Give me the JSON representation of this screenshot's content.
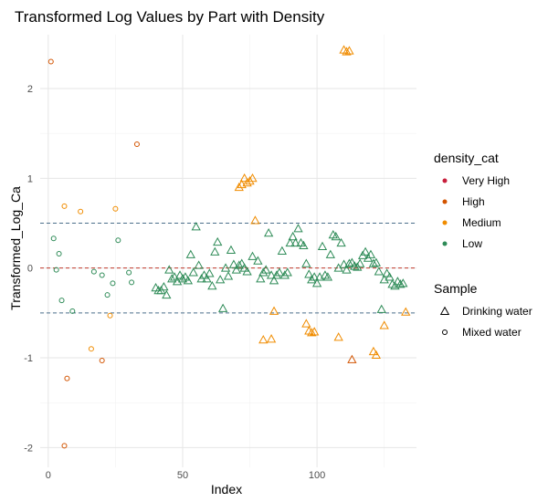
{
  "chart_data": {
    "type": "scatter",
    "title": "Transformed Log  Values by Part with Density",
    "xlabel": "Index",
    "ylabel": "Transformed_Log_Ca",
    "xlim": [
      -3,
      137
    ],
    "ylim": [
      -2.22,
      2.6
    ],
    "x_ticks": [
      0,
      50,
      100
    ],
    "y_ticks": [
      -2,
      -1,
      0,
      1,
      2
    ],
    "grid": true,
    "reference_lines": [
      {
        "y": 0,
        "color": "#C0392B",
        "style": "dashed"
      },
      {
        "y": 0.5,
        "color": "#4A6E8A",
        "style": "dashed"
      },
      {
        "y": -0.5,
        "color": "#4A6E8A",
        "style": "dashed"
      }
    ],
    "legend_position": "right",
    "legend_color": {
      "title": "density_cat",
      "items": [
        {
          "label": "Very High",
          "color": "#C81E3B"
        },
        {
          "label": "High",
          "color": "#D35400"
        },
        {
          "label": "Medium",
          "color": "#F08C00"
        },
        {
          "label": "Low",
          "color": "#2E8B57"
        }
      ]
    },
    "legend_shape": {
      "title": "Sample",
      "items": [
        {
          "label": "Drinking water",
          "shape": "triangle"
        },
        {
          "label": "Mixed water",
          "shape": "circle"
        }
      ]
    },
    "series": [
      {
        "category": "High",
        "shape": "circle",
        "points": [
          [
            1,
            2.3
          ],
          [
            7,
            -1.23
          ],
          [
            20,
            -1.03
          ],
          [
            33,
            1.38
          ],
          [
            6,
            -1.98
          ]
        ]
      },
      {
        "category": "Medium",
        "shape": "circle",
        "points": [
          [
            6,
            0.69
          ],
          [
            12,
            0.63
          ],
          [
            16,
            -0.9
          ],
          [
            23,
            -0.53
          ],
          [
            25,
            0.66
          ]
        ]
      },
      {
        "category": "Low",
        "shape": "circle",
        "points": [
          [
            2,
            0.33
          ],
          [
            3,
            -0.02
          ],
          [
            4,
            0.16
          ],
          [
            5,
            -0.36
          ],
          [
            9,
            -0.48
          ],
          [
            17,
            -0.04
          ],
          [
            20,
            -0.08
          ],
          [
            22,
            -0.3
          ],
          [
            24,
            -0.17
          ],
          [
            26,
            0.31
          ],
          [
            30,
            -0.05
          ],
          [
            31,
            -0.16
          ]
        ]
      },
      {
        "category": "Medium",
        "shape": "triangle",
        "points": [
          [
            71,
            0.9
          ],
          [
            72,
            0.93
          ],
          [
            73,
            1.0
          ],
          [
            74,
            0.95
          ],
          [
            75,
            0.97
          ],
          [
            76,
            1.0
          ],
          [
            77,
            0.53
          ],
          [
            80,
            -0.8
          ],
          [
            83,
            -0.79
          ],
          [
            84,
            -0.48
          ],
          [
            96,
            -0.62
          ],
          [
            97,
            -0.7
          ],
          [
            98,
            -0.72
          ],
          [
            99,
            -0.71
          ],
          [
            108,
            -0.77
          ],
          [
            110,
            2.43
          ],
          [
            111,
            2.41
          ],
          [
            112,
            2.42
          ],
          [
            121,
            -0.93
          ],
          [
            122,
            -0.97
          ],
          [
            125,
            -0.64
          ],
          [
            133,
            -0.49
          ]
        ]
      },
      {
        "category": "High",
        "shape": "triangle",
        "points": [
          [
            113,
            -1.02
          ]
        ]
      },
      {
        "category": "Low",
        "shape": "triangle",
        "points": [
          [
            40,
            -0.22
          ],
          [
            41,
            -0.25
          ],
          [
            42,
            -0.25
          ],
          [
            43,
            -0.21
          ],
          [
            44,
            -0.3
          ],
          [
            45,
            -0.02
          ],
          [
            46,
            -0.12
          ],
          [
            47,
            -0.1
          ],
          [
            48,
            -0.15
          ],
          [
            49,
            -0.08
          ],
          [
            50,
            -0.12
          ],
          [
            51,
            -0.1
          ],
          [
            52,
            -0.14
          ],
          [
            53,
            0.15
          ],
          [
            54,
            -0.05
          ],
          [
            55,
            0.46
          ],
          [
            56,
            0.03
          ],
          [
            57,
            -0.12
          ],
          [
            58,
            -0.08
          ],
          [
            59,
            -0.12
          ],
          [
            60,
            -0.06
          ],
          [
            61,
            -0.2
          ],
          [
            62,
            0.18
          ],
          [
            63,
            0.29
          ],
          [
            64,
            -0.13
          ],
          [
            65,
            -0.45
          ],
          [
            66,
            0.0
          ],
          [
            67,
            -0.09
          ],
          [
            68,
            0.2
          ],
          [
            69,
            0.04
          ],
          [
            70,
            -0.02
          ],
          [
            71,
            0.03
          ],
          [
            72,
            0.05
          ],
          [
            73,
            0.0
          ],
          [
            74,
            -0.04
          ],
          [
            76,
            0.13
          ],
          [
            78,
            0.08
          ],
          [
            79,
            -0.12
          ],
          [
            80,
            -0.05
          ],
          [
            81,
            -0.02
          ],
          [
            82,
            0.39
          ],
          [
            83,
            -0.08
          ],
          [
            84,
            -0.14
          ],
          [
            85,
            -0.08
          ],
          [
            86,
            -0.05
          ],
          [
            87,
            0.19
          ],
          [
            88,
            -0.08
          ],
          [
            89,
            -0.05
          ],
          [
            90,
            0.28
          ],
          [
            91,
            0.35
          ],
          [
            92,
            0.28
          ],
          [
            93,
            0.44
          ],
          [
            94,
            0.28
          ],
          [
            95,
            0.25
          ],
          [
            96,
            0.05
          ],
          [
            97,
            -0.07
          ],
          [
            98,
            -0.13
          ],
          [
            99,
            -0.1
          ],
          [
            100,
            -0.17
          ],
          [
            101,
            -0.1
          ],
          [
            102,
            0.24
          ],
          [
            103,
            -0.08
          ],
          [
            104,
            -0.1
          ],
          [
            105,
            0.15
          ],
          [
            106,
            0.37
          ],
          [
            107,
            0.35
          ],
          [
            108,
            0.0
          ],
          [
            109,
            0.28
          ],
          [
            110,
            0.04
          ],
          [
            111,
            -0.02
          ],
          [
            112,
            0.05
          ],
          [
            113,
            0.06
          ],
          [
            114,
            0.02
          ],
          [
            115,
            0.01
          ],
          [
            116,
            0.05
          ],
          [
            117,
            0.14
          ],
          [
            118,
            0.18
          ],
          [
            119,
            0.11
          ],
          [
            120,
            0.15
          ],
          [
            121,
            0.05
          ],
          [
            122,
            0.06
          ],
          [
            123,
            -0.04
          ],
          [
            124,
            -0.46
          ],
          [
            125,
            -0.13
          ],
          [
            126,
            -0.06
          ],
          [
            127,
            -0.1
          ],
          [
            128,
            -0.18
          ],
          [
            129,
            -0.2
          ],
          [
            130,
            -0.15
          ],
          [
            131,
            -0.18
          ],
          [
            132,
            -0.17
          ]
        ]
      }
    ]
  }
}
